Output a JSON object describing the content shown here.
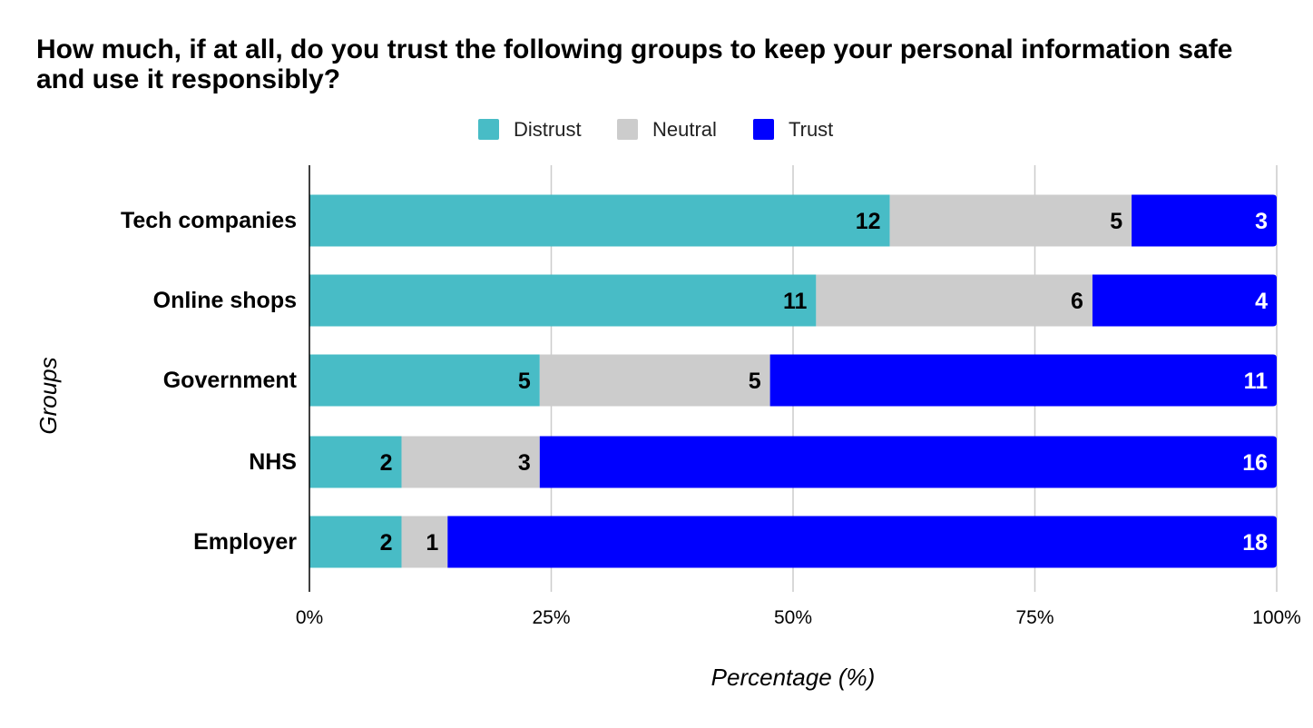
{
  "chart_data": {
    "type": "bar",
    "orientation": "horizontal",
    "stacked": "percent",
    "title": "How much, if at all, do you trust the following groups to keep your personal information safe and use it responsibly?",
    "xlabel": "Percentage (%)",
    "ylabel": "Groups",
    "categories": [
      "Tech companies",
      "Online shops",
      "Government",
      "NHS",
      "Employer"
    ],
    "series": [
      {
        "name": "Distrust",
        "color": "#48BCC6",
        "label_color": "#000000",
        "values": [
          12,
          11,
          5,
          2,
          2
        ]
      },
      {
        "name": "Neutral",
        "color": "#CCCCCC",
        "label_color": "#000000",
        "values": [
          5,
          6,
          5,
          3,
          1
        ]
      },
      {
        "name": "Trust",
        "color": "#0000FF",
        "label_color": "#FFFFFF",
        "values": [
          3,
          4,
          11,
          16,
          18
        ]
      }
    ],
    "x_ticks": [
      "0%",
      "25%",
      "50%",
      "75%",
      "100%"
    ],
    "xlim": [
      0,
      100
    ],
    "grid": true,
    "legend_position": "top-center"
  }
}
